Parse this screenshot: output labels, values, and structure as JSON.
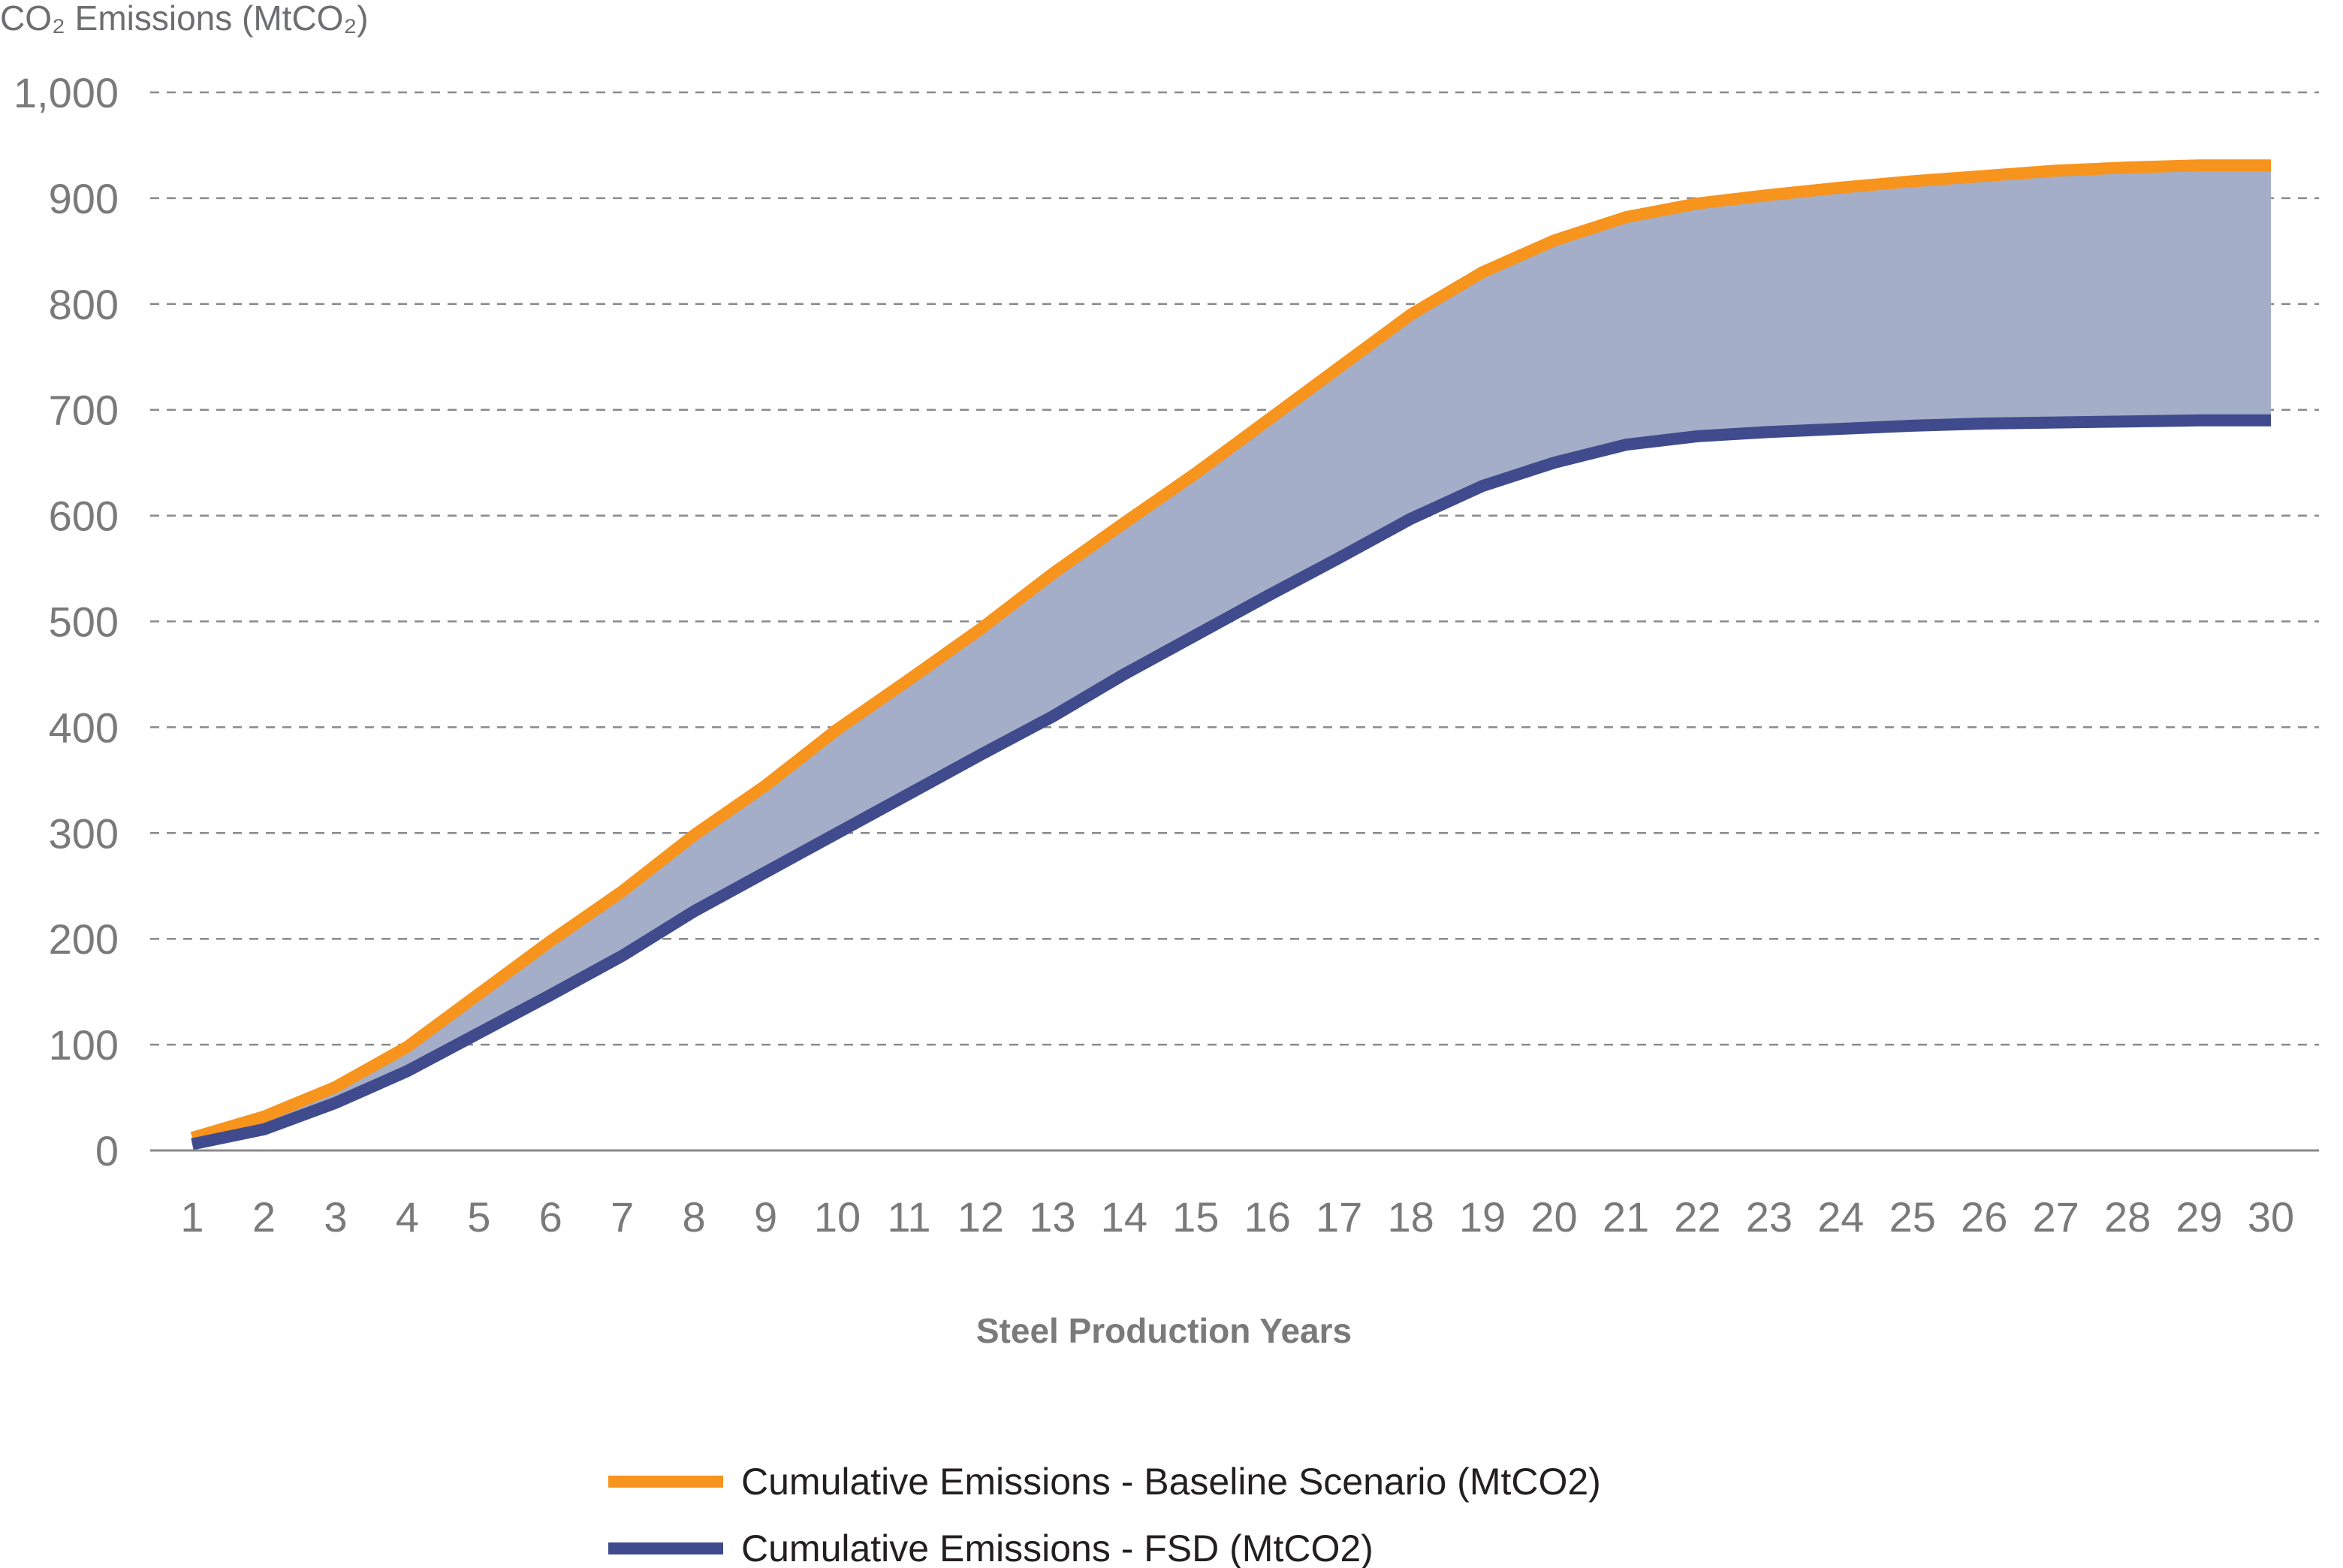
{
  "chart_data": {
    "type": "line",
    "ylabel": "CO₂ Emissions (MtCO₂)",
    "xlabel": "Steel Production Years",
    "ylim": [
      0,
      1000
    ],
    "yticks": [
      "0",
      "100",
      "200",
      "300",
      "400",
      "500",
      "600",
      "700",
      "800",
      "900",
      "1,000"
    ],
    "ytick_values": [
      0,
      100,
      200,
      300,
      400,
      500,
      600,
      700,
      800,
      900,
      1000
    ],
    "grid": true,
    "legend_position": "bottom",
    "x": [
      1,
      2,
      3,
      4,
      5,
      6,
      7,
      8,
      9,
      10,
      11,
      12,
      13,
      14,
      15,
      16,
      17,
      18,
      19,
      20,
      21,
      22,
      23,
      24,
      25,
      26,
      27,
      28,
      29,
      30
    ],
    "series": [
      {
        "name": "Cumulative Emissions - Baseline Scenario (MtCO2)",
        "color": "#f7941d",
        "values": [
          12,
          32,
          60,
          98,
          148,
          198,
          245,
          298,
          345,
          398,
          445,
          493,
          545,
          593,
          640,
          690,
          740,
          790,
          830,
          860,
          882,
          895,
          903,
          910,
          916,
          921,
          926,
          929,
          931,
          931
        ]
      },
      {
        "name": "Cumulative Emissions - FSD (MtCO2)",
        "color": "#3f4b8c",
        "values": [
          6,
          20,
          45,
          75,
          111,
          147,
          184,
          226,
          263,
          300,
          337,
          374,
          410,
          450,
          487,
          524,
          560,
          597,
          628,
          650,
          667,
          675,
          679,
          682,
          685,
          687,
          688,
          689,
          690,
          690
        ]
      }
    ],
    "fill_between": {
      "color": "#a5aec8"
    }
  }
}
